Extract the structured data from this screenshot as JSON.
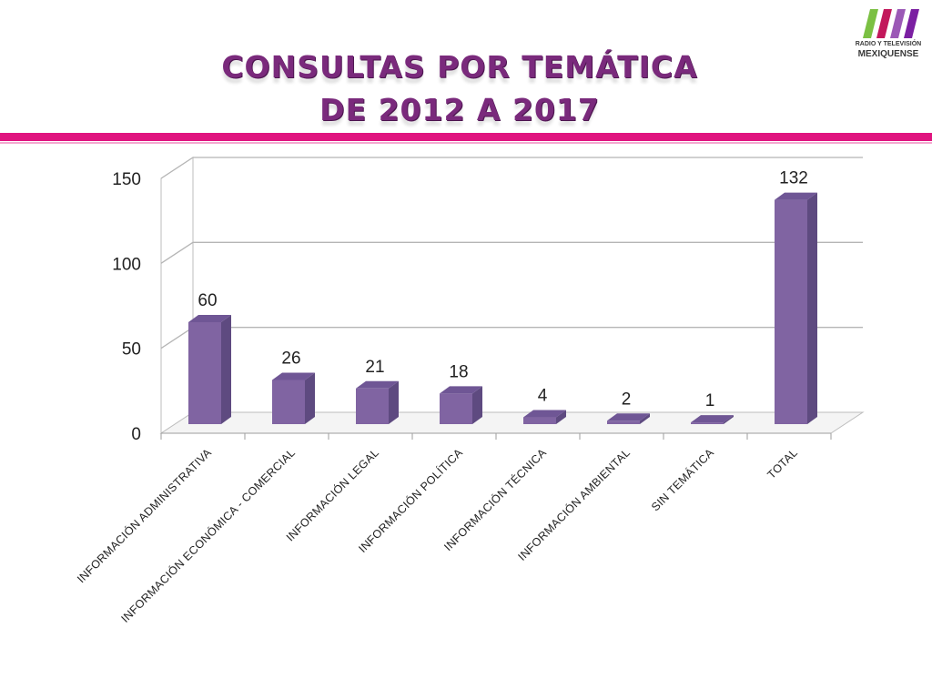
{
  "slide": {
    "title_line1": "CONSULTAS POR TEMÁTICA",
    "title_line2": "DE 2012 A 2017",
    "accent_color": "#e0147f",
    "title_color": "#7a2a7c"
  },
  "logo": {
    "line1": "RADIO Y TELEVISIÓN",
    "line2": "MEXIQUENSE",
    "stripe_colors": [
      "#7bc043",
      "#c2185b",
      "#9b59b6",
      "#7b1fa2"
    ]
  },
  "chart_data": {
    "type": "bar",
    "style": "3d-column",
    "categories": [
      "INFORMACIÓN ADMINISTRATIVA",
      "INFORMACIÓN ECONÓMICA - COMERCIAL",
      "INFORMACIÓN LEGAL",
      "INFORMACIÓN POLÍTICA",
      "INFORMACIÓN TÉCNICA",
      "INFORMACIÓN AMBIENTAL",
      "SIN TEMÁTICA",
      "TOTAL"
    ],
    "values": [
      60,
      26,
      21,
      18,
      4,
      2,
      1,
      132
    ],
    "data_labels": [
      "60",
      "26",
      "21",
      "18",
      "4",
      "2",
      "1",
      "132"
    ],
    "yticks": [
      "0",
      "50",
      "100",
      "150"
    ],
    "ylim": [
      0,
      150
    ],
    "grid": true,
    "legend": "none",
    "bar_color": "#8064a2",
    "title": "",
    "xlabel": "",
    "ylabel": ""
  }
}
